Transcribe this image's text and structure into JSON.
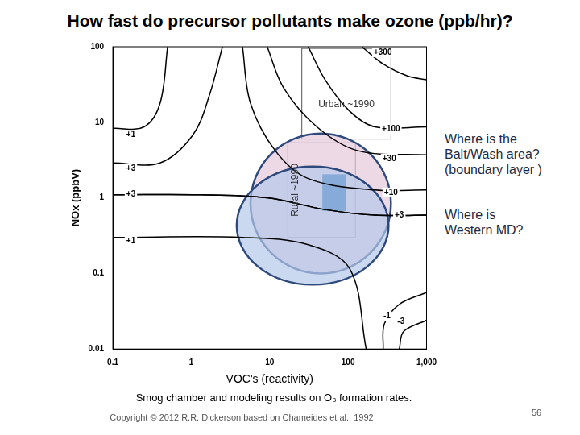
{
  "title": "How fast do precursor pollutants make ozone (ppb/hr)?",
  "subtitle": "Smog chamber and modeling results on O₃ formation rates.",
  "footer": "Copyright © 2012  R.R. Dickerson based on Chameides et al., 1992",
  "page_number": 56,
  "notes": [
    {
      "lines": [
        "Where is the",
        "Balt/Wash area?",
        "(boundary layer )"
      ]
    },
    {
      "lines": [
        "Where is",
        "Western MD?"
      ]
    }
  ],
  "chart_data": {
    "type": "line",
    "x_label": "VOC's (reactivity)",
    "y_label": "NOx (ppbV)",
    "log": true,
    "grid": false,
    "xlim": [
      0.1,
      1000
    ],
    "ylim": [
      0.01,
      100
    ],
    "xticks": [
      0.1,
      1,
      10,
      100,
      {
        "value": 1000,
        "label": "1,000"
      }
    ],
    "yticks": [
      0.01,
      0.1,
      1,
      10,
      100
    ],
    "series": [
      {
        "name": "+1",
        "color": "#000000",
        "x": [
          0.1,
          0.25,
          0.4,
          0.5
        ],
        "values": [
          8.3,
          8.7,
          17.8,
          100
        ],
        "label": {
          "x": 0.17,
          "y": 6.8
        }
      },
      {
        "name": "+3",
        "color": "#000000",
        "x": [
          0.1,
          0.4,
          1.05,
          1.7,
          2.5
        ],
        "values": [
          2.9,
          2.9,
          6.8,
          22.6,
          100
        ],
        "label": {
          "x": 0.17,
          "y": 2.43
        }
      },
      {
        "name": "+10",
        "color": "#000000",
        "x": [
          4.5,
          5.7,
          11.8,
          31,
          220,
          1000
        ],
        "values": [
          100,
          17.8,
          4.2,
          1.8,
          1.27,
          1.27
        ],
        "label": {
          "x": 352,
          "y": 1.18
        }
      },
      {
        "name": "+30",
        "color": "#000000",
        "x": [
          9.3,
          15,
          40,
          134,
          1000
        ],
        "values": [
          100,
          28.7,
          8.7,
          4.2,
          3.7
        ],
        "label": {
          "x": 335,
          "y": 3.3
        }
      },
      {
        "name": "+100",
        "color": "#000000",
        "x": [
          31,
          51,
          105,
          220,
          1000
        ],
        "values": [
          100,
          36.5,
          14,
          8.7,
          8.7
        ],
        "label": {
          "x": 352,
          "y": 8.06
        }
      },
      {
        "name": "+300",
        "color": "#000000",
        "x": [
          150,
          280,
          570,
          1000
        ],
        "values": [
          100,
          59,
          41,
          36.5
        ],
        "label": {
          "x": 277,
          "y": 84
        }
      },
      {
        "name": "+3",
        "color": "#000000",
        "x": [
          0.1,
          1.3,
          9.3,
          51,
          220,
          1000
        ],
        "values": [
          1.1,
          1.1,
          1.0,
          0.7,
          0.59,
          0.59
        ],
        "label": {
          "x": 0.17,
          "y": 1.1
        }
      },
      {
        "name": "+3",
        "color": "#000000",
        "x": [
          0.1,
          1.3,
          9.3,
          51,
          220,
          1000
        ],
        "values": [
          1.1,
          1.1,
          1.0,
          0.7,
          0.59,
          0.59
        ],
        "label": {
          "x": 450,
          "y": 0.59
        }
      },
      {
        "name": "+1",
        "color": "#000000",
        "x": [
          0.1,
          4.5,
          31,
          105,
          170
        ],
        "values": [
          0.3,
          0.3,
          0.24,
          0.115,
          0.01
        ],
        "label": {
          "x": 0.17,
          "y": 0.27
        }
      },
      {
        "name": "-1",
        "color": "#000000",
        "x": [
          280,
          290,
          450,
          1000
        ],
        "values": [
          0.01,
          0.0215,
          0.039,
          0.056
        ],
        "label": {
          "x": 313,
          "y": 0.027
        }
      },
      {
        "name": "-3",
        "color": "#000000",
        "x": [
          450,
          510,
          1000
        ],
        "values": [
          0.01,
          0.017,
          0.024
        ],
        "label": {
          "x": 472,
          "y": 0.023
        }
      }
    ],
    "regions": [
      {
        "shape": "box",
        "label": "Urban ~1990",
        "x": [
          25.7,
          352
        ],
        "y": [
          6.0,
          95
        ]
      },
      {
        "shape": "box",
        "label": "Rural ~1990",
        "x": [
          17,
          124
        ],
        "y": [
          0.3,
          5.35
        ]
      },
      {
        "shape": "ellipse",
        "color": "#e6c8dc",
        "x": [
          5.7,
          352
        ],
        "y": [
          0.1,
          7.1
        ]
      },
      {
        "shape": "ellipse",
        "color": "#b4c8ea",
        "x": [
          3.8,
          328
        ],
        "y": [
          0.071,
          2.6
        ]
      },
      {
        "shape": "square",
        "color": "#7fa7d6",
        "x": [
          47,
          93
        ],
        "y": [
          0.67,
          2.05
        ]
      }
    ]
  }
}
